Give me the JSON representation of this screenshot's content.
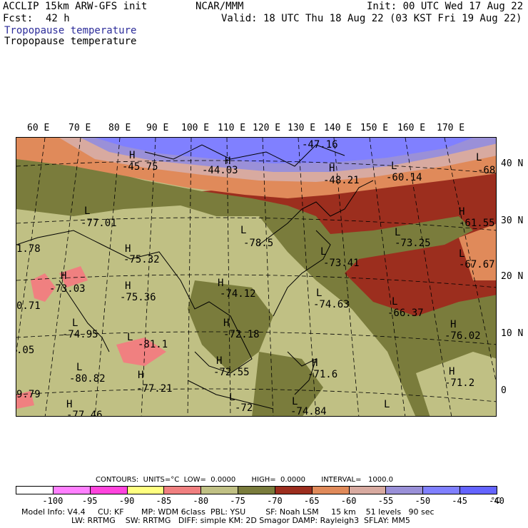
{
  "header": {
    "model": "ACCLIP 15km ARW-GFS init",
    "org": "NCAR/MMM",
    "init": "Init: 00 UTC Wed 17 Aug 22",
    "fcst_label": "Fcst:",
    "fcst_value": "42 h",
    "valid": "Valid: 18 UTC Thu 18 Aug 22 (03 KST Fri 19 Aug 22)",
    "field_blue": "Tropopause temperature",
    "field_black": "Tropopause temperature"
  },
  "lon_labels": [
    "60 E",
    "70 E",
    "80 E",
    "90 E",
    "100 E",
    "110 E",
    "120 E",
    "130 E",
    "140 E",
    "150 E",
    "160 E",
    "170 E"
  ],
  "lat_labels": [
    "40 N",
    "30 N",
    "20 N",
    "10 N",
    "0"
  ],
  "annotations": [
    {
      "t": "-47.16"
    },
    {
      "t": "H"
    },
    {
      "t": "-45.75"
    },
    {
      "t": "H"
    },
    {
      "t": "-44.03"
    },
    {
      "t": "H"
    },
    {
      "t": "-48.21"
    },
    {
      "t": "L"
    },
    {
      "t": "-60.14"
    },
    {
      "t": "L"
    },
    {
      "t": "-68"
    },
    {
      "t": "L"
    },
    {
      "t": "-77.01"
    },
    {
      "t": "L"
    },
    {
      "t": "-78.5"
    },
    {
      "t": "H"
    },
    {
      "t": "-61.55"
    },
    {
      "t": "L"
    },
    {
      "t": "-73.25"
    },
    {
      "t": "L"
    },
    {
      "t": "-73.41"
    },
    {
      "t": "H"
    },
    {
      "t": "-75.32"
    },
    {
      "t": "L"
    },
    {
      "t": "-67.67"
    },
    {
      "t": "H"
    },
    {
      "t": "-73.03"
    },
    {
      "t": "H"
    },
    {
      "t": "-75.36"
    },
    {
      "t": "H"
    },
    {
      "t": "-74.12"
    },
    {
      "t": "L"
    },
    {
      "t": "-74.63"
    },
    {
      "t": "L"
    },
    {
      "t": "-66.37"
    },
    {
      "t": "H"
    },
    {
      "t": "-72.18"
    },
    {
      "t": "L"
    },
    {
      "t": "-74.95"
    },
    {
      "t": "L"
    },
    {
      "t": "-81.1"
    },
    {
      "t": "H"
    },
    {
      "t": "-76.02"
    },
    {
      "t": "L"
    },
    {
      "t": "-80.82"
    },
    {
      "t": "H"
    },
    {
      "t": "-72.55"
    },
    {
      "t": "H"
    },
    {
      "t": "-71.6"
    },
    {
      "t": "H"
    },
    {
      "t": "-71.2"
    },
    {
      "t": "H"
    },
    {
      "t": "-77.21"
    },
    {
      "t": "L"
    },
    {
      "t": "-74.84"
    },
    {
      "t": "H"
    },
    {
      "t": "-77.46"
    },
    {
      "t": "L"
    },
    {
      "t": "-72"
    },
    {
      "t": "L"
    },
    {
      "t": "1.78"
    },
    {
      "t": "0.71"
    },
    {
      "t": ".05"
    },
    {
      "t": "9.79"
    }
  ],
  "contours_line": "CONTOURS:  UNITS=°C  LOW=  0.0000       HIGH=  0.0000       INTERVAL=   1000.0",
  "colorbar": {
    "colors": [
      "#ffffff",
      "#ff80ff",
      "#ff44dd",
      "#ffff80",
      "#f08080",
      "#c0c084",
      "#7a7c3c",
      "#9c2e1e",
      "#e08a5a",
      "#d8aaa0",
      "#9a90d8",
      "#8080ff",
      "#6464ff"
    ],
    "labels": [
      "-100",
      "-95",
      "-90",
      "-85",
      "-80",
      "-75",
      "-70",
      "-65",
      "-60",
      "-55",
      "-50",
      "-45",
      "-40"
    ],
    "unit": "°C"
  },
  "footer": {
    "line1": "Model Info: V4.4     CU: KF       MP: WDM 6class  PBL: YSU        SF: Noah LSM     15 km    51 levels   90 sec",
    "line2": "LW: RRTMG    SW: RRTMG   DIFF: simple KM: 2D Smagor DAMP: Rayleigh3  SFLAY: MM5"
  }
}
